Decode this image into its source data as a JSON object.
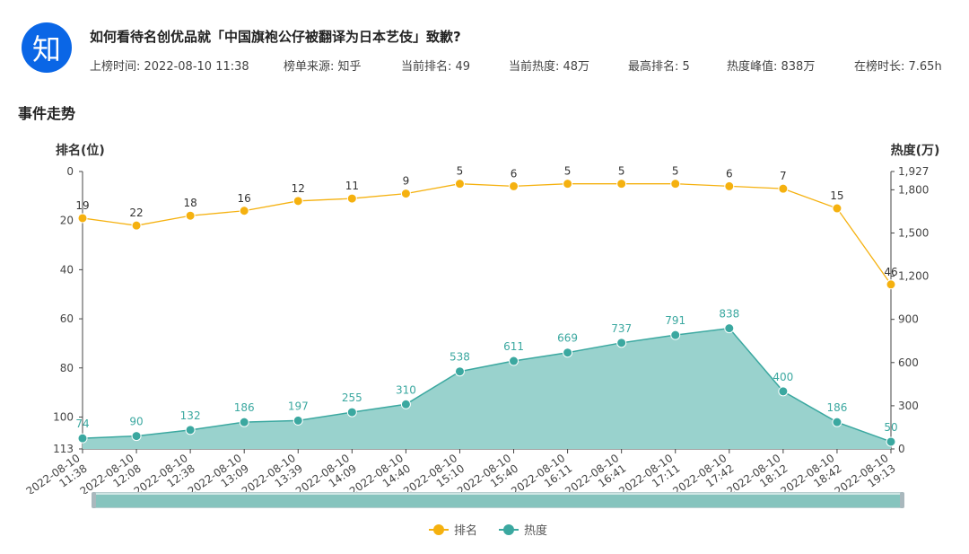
{
  "header": {
    "logo_text": "知",
    "title": "如何看待名创优品就「中国旗袍公仔被翻译为日本艺伎」致歉?",
    "meta": [
      "上榜时间: 2022-08-10 11:38",
      "榜单来源: 知乎",
      "当前排名: 49",
      "当前热度: 48万",
      "最高排名: 5",
      "热度峰值: 838万",
      "在榜时长: 7.65h"
    ]
  },
  "section_title": "事件走势",
  "colors": {
    "rank": "#f5b10f",
    "heat": "#3ba8a0",
    "heat_fill": "#99d2cd",
    "brand": "#0a66e6"
  },
  "legend": {
    "rank": "排名",
    "heat": "热度"
  },
  "chart_data": {
    "type": "line",
    "x": [
      "2022-08-10 11:38",
      "2022-08-10 12:08",
      "2022-08-10 12:38",
      "2022-08-10 13:09",
      "2022-08-10 13:39",
      "2022-08-10 14:09",
      "2022-08-10 14:40",
      "2022-08-10 15:10",
      "2022-08-10 15:40",
      "2022-08-10 16:11",
      "2022-08-10 16:41",
      "2022-08-10 17:11",
      "2022-08-10 17:42",
      "2022-08-10 18:12",
      "2022-08-10 18:42",
      "2022-08-10 19:13"
    ],
    "series": [
      {
        "name": "排名",
        "axis": "left",
        "values": [
          19,
          22,
          18,
          16,
          12,
          11,
          9,
          5,
          6,
          5,
          5,
          5,
          6,
          7,
          15,
          46
        ]
      },
      {
        "name": "热度",
        "axis": "right",
        "unit": "万",
        "values": [
          74,
          90,
          132,
          186,
          197,
          255,
          310,
          538,
          611,
          669,
          737,
          791,
          838,
          400,
          186,
          50
        ]
      }
    ],
    "ylabel_left": "排名(位)",
    "ylabel_right": "热度(万)",
    "ylim_left": [
      0,
      113
    ],
    "left_axis_inverted": true,
    "ylim_right": [
      0,
      1927
    ],
    "left_ticks": [
      0,
      20,
      40,
      60,
      80,
      100,
      113
    ],
    "right_ticks": [
      0,
      300,
      600,
      900,
      1200,
      1500,
      1800,
      1927
    ],
    "grid": false,
    "legend_position": "bottom-center"
  }
}
